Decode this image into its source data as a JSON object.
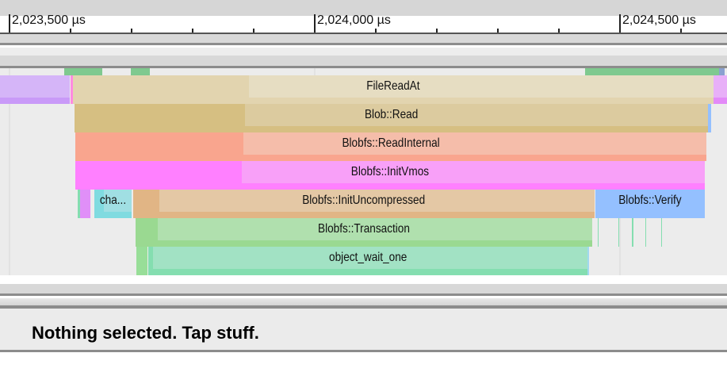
{
  "ruler": {
    "unit": "µs",
    "major_ticks": [
      {
        "value": 2023500,
        "label": "2,023,500 µs"
      },
      {
        "value": 2024000,
        "label": "2,024,000 µs"
      },
      {
        "value": 2024500,
        "label": "2,024,500 µs"
      }
    ],
    "minor_step": 100,
    "view_start": 2023484,
    "view_end": 2024675
  },
  "cpu_activity": [
    {
      "start": 2023590,
      "end": 2023652,
      "color": "#7fc98f"
    },
    {
      "start": 2023699,
      "end": 2023730,
      "color": "#7fc98f"
    },
    {
      "start": 2024443,
      "end": 2024662,
      "color": "#7fc98f"
    },
    {
      "start": 2024662,
      "end": 2024672,
      "color": "#8aa0d0"
    }
  ],
  "slices": [
    {
      "row": 0,
      "label": "",
      "start": 2023484,
      "end": 2023599,
      "color": "#c99af8",
      "light": "#d5b5f8"
    },
    {
      "row": 0,
      "label": "",
      "start": 2023600,
      "end": 2023604,
      "color": "#ff8ae0",
      "light": "#ff8ae0"
    },
    {
      "row": 0,
      "label": "FileReadAt",
      "start": 2023604,
      "end": 2024653,
      "color": "#e2d4af",
      "light": "#e6ddc2",
      "inner_start": 2023892
    },
    {
      "row": 0,
      "label": "",
      "start": 2024653,
      "end": 2024675,
      "color": "#e38af8",
      "light": "#e8b0f8"
    },
    {
      "row": 1,
      "label": "Blob::Read",
      "start": 2023606,
      "end": 2024644,
      "color": "#d6bf82",
      "light": "#dccb9f",
      "inner_start": 2023886
    },
    {
      "row": 1,
      "label": "",
      "start": 2024644,
      "end": 2024650,
      "color": "#94c0ff",
      "light": "#94c0ff"
    },
    {
      "row": 2,
      "label": "Blobfs::ReadInternal",
      "start": 2023608,
      "end": 2024642,
      "color": "#f9a58e",
      "light": "#f5bdaa",
      "inner_start": 2023883
    },
    {
      "row": 3,
      "label": "Blobfs::InitVmos",
      "start": 2023608,
      "end": 2024639,
      "color": "#ff80ff",
      "light": "#f8a0f8",
      "inner_start": 2023880
    },
    {
      "row": 4,
      "label": "",
      "start": 2023612,
      "end": 2023616,
      "color": "#84deb0",
      "light": "#84deb0"
    },
    {
      "row": 4,
      "label": "",
      "start": 2023616,
      "end": 2023633,
      "color": "#e08ff8",
      "light": "#e08ff8"
    },
    {
      "row": 4,
      "label": "cha...",
      "start": 2023639,
      "end": 2023700,
      "color": "#80dbe0",
      "light": "#a0dfe3",
      "inner_start": 2023654
    },
    {
      "row": 4,
      "label": "Blobfs::InitUncompressed",
      "start": 2023703,
      "end": 2024458,
      "color": "#e1b585",
      "light": "#e4c8a5",
      "inner_start": 2023745
    },
    {
      "row": 4,
      "label": "Blobfs::Verify",
      "start": 2024460,
      "end": 2024639,
      "color": "#94c0ff",
      "light": "#94c0ff"
    },
    {
      "row": 5,
      "label": "Blobfs::Transaction",
      "start": 2023706,
      "end": 2024454,
      "color": "#9ad991",
      "light": "#b0e0ae",
      "inner_start": 2023743
    },
    {
      "row": 6,
      "label": "",
      "start": 2023708,
      "end": 2023726,
      "color": "#98de98",
      "light": "#98de98"
    },
    {
      "row": 6,
      "label": "object_wait_one",
      "start": 2023727,
      "end": 2024447,
      "color": "#84deb0",
      "light": "#a2e2c4",
      "inner_start": 2023735
    },
    {
      "row": 6,
      "label": "",
      "start": 2024447,
      "end": 2024449,
      "color": "#a0d8f0",
      "light": "#a0d8f0"
    }
  ],
  "slivers": [
    {
      "row": 5,
      "t": 2024464,
      "color": "#84deb0"
    },
    {
      "row": 5,
      "t": 2024497,
      "color": "#84deb0"
    },
    {
      "row": 5,
      "t": 2024519,
      "color": "#84deb0"
    },
    {
      "row": 5,
      "t": 2024521,
      "color": "#84deb0"
    },
    {
      "row": 5,
      "t": 2024541,
      "color": "#84deb0"
    },
    {
      "row": 5,
      "t": 2024568,
      "color": "#84deb0"
    }
  ],
  "details_panel": {
    "status": "Nothing selected. Tap stuff."
  }
}
